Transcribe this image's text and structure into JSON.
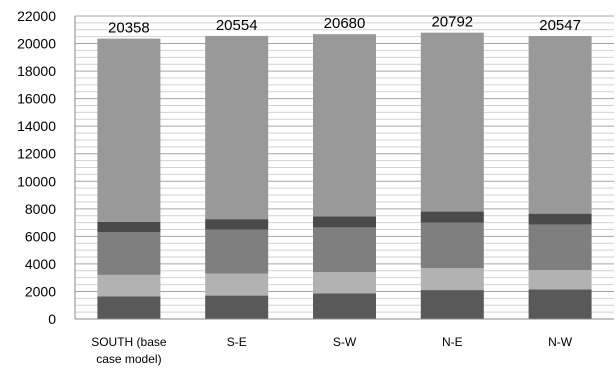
{
  "chart_data": {
    "type": "bar",
    "stacked": true,
    "categories": [
      [
        "SOUTH (base",
        "case model)"
      ],
      [
        "S-E"
      ],
      [
        "S-W"
      ],
      [
        "N-E"
      ],
      [
        "N-W"
      ]
    ],
    "series": [
      {
        "values": [
          1650,
          1700,
          1850,
          2100,
          2150
        ],
        "color": "#595959"
      },
      {
        "values": [
          1550,
          1600,
          1550,
          1600,
          1400
        ],
        "color": "#b2b2b2"
      },
      {
        "values": [
          3100,
          3200,
          3250,
          3300,
          3300
        ],
        "color": "#7f7f7f"
      },
      {
        "values": [
          750,
          750,
          800,
          800,
          800
        ],
        "color": "#4a4a4a"
      },
      {
        "values": [
          13308,
          13304,
          13230,
          12992,
          12897
        ],
        "color": "#999999"
      }
    ],
    "totals": [
      20358,
      20554,
      20680,
      20792,
      20547
    ],
    "ylim": [
      0,
      22000
    ],
    "y_ticks": [
      0,
      2000,
      4000,
      6000,
      8000,
      10000,
      12000,
      14000,
      16000,
      18000,
      20000,
      22000
    ],
    "grid": true,
    "minor_gridlines": true,
    "legend": "none",
    "title": "",
    "xlabel": "",
    "ylabel": ""
  }
}
